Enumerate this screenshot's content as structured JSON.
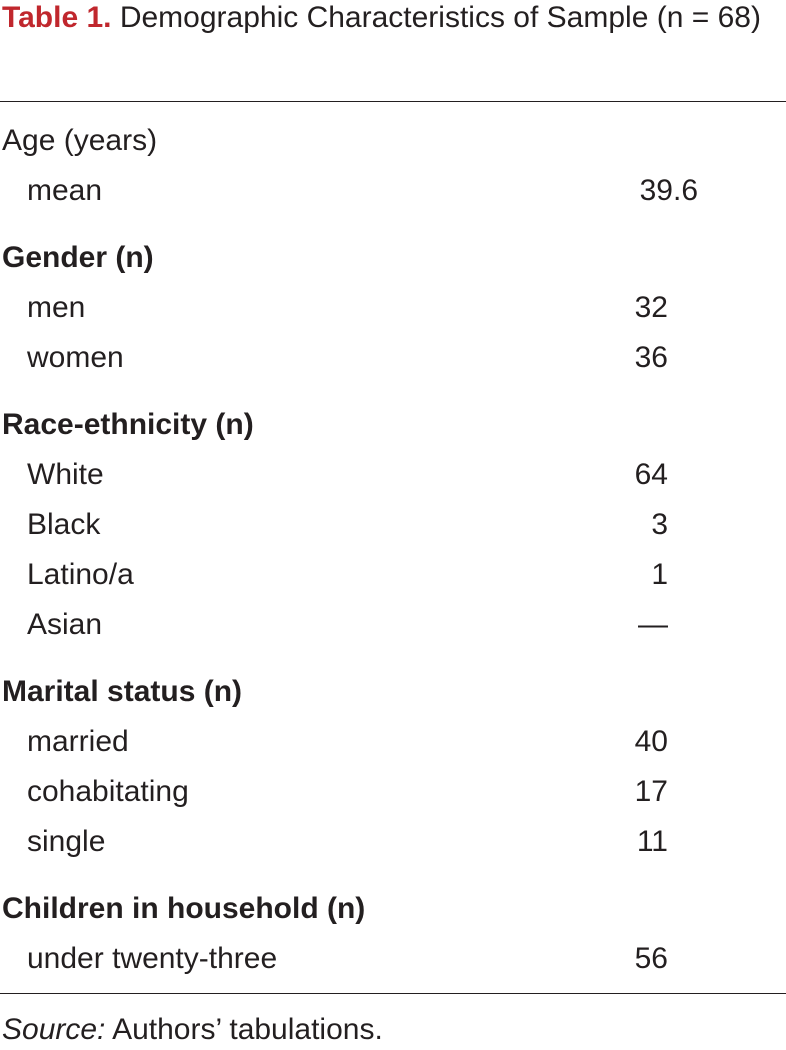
{
  "caption": {
    "label": "Table 1.",
    "title": "Demographic Characteristics of Sample (n = 68)"
  },
  "sections": [
    {
      "heading": "Age (years)",
      "bold": false,
      "rows": [
        {
          "label": "mean",
          "value": 39.6
        }
      ]
    },
    {
      "heading": "Gender (n)",
      "bold": true,
      "rows": [
        {
          "label": "men",
          "value": 32
        },
        {
          "label": "women",
          "value": 36
        }
      ]
    },
    {
      "heading": "Race-ethnicity (n)",
      "bold": true,
      "rows": [
        {
          "label": "White",
          "value": 64
        },
        {
          "label": "Black",
          "value": 3
        },
        {
          "label": "Latino/a",
          "value": 1
        },
        {
          "label": "Asian",
          "value": "—"
        }
      ]
    },
    {
      "heading": "Marital status (n)",
      "bold": true,
      "rows": [
        {
          "label": "married",
          "value": 40
        },
        {
          "label": "cohabitating",
          "value": 17
        },
        {
          "label": "single",
          "value": 11
        }
      ]
    },
    {
      "heading": "Children in household (n)",
      "bold": true,
      "rows": [
        {
          "label": "under twenty-three",
          "value": 56
        }
      ]
    }
  ],
  "source": {
    "label": "Source:",
    "text": "Authors’ tabulations."
  }
}
